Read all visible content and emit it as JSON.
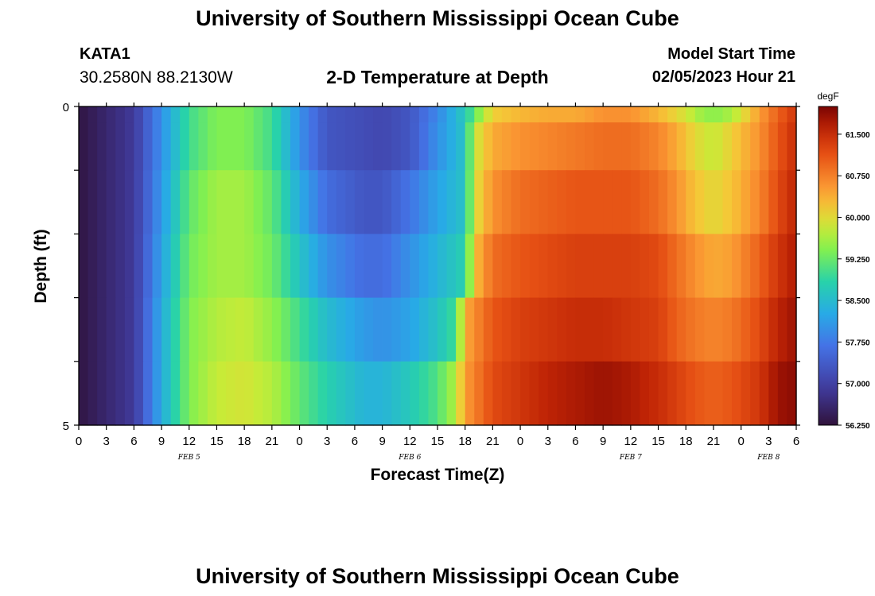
{
  "header": {
    "title": "University of Southern Mississippi Ocean Cube",
    "station_id": "KATA1",
    "coordinates": "30.2580N  88.2130W",
    "subtitle": "2-D Temperature at Depth",
    "model_start_label": "Model Start Time",
    "model_start_value": "02/05/2023 Hour 21"
  },
  "footer": {
    "title": "University of Southern Mississippi Ocean Cube"
  },
  "chart_data": {
    "type": "heatmap",
    "title": "2-D Temperature at Depth",
    "xlabel": "Forecast Time(Z)",
    "ylabel": "Depth (ft)",
    "y_tick_labels": [
      "0",
      "5"
    ],
    "ylim": [
      0,
      5
    ],
    "x_tick_labels": [
      "0",
      "3",
      "6",
      "9",
      "12",
      "15",
      "18",
      "21",
      "0",
      "3",
      "6",
      "9",
      "12",
      "15",
      "18",
      "21",
      "0",
      "3",
      "6",
      "9",
      "12",
      "15",
      "18",
      "21",
      "0",
      "3",
      "6"
    ],
    "x_tick_hours": [
      0,
      3,
      6,
      9,
      12,
      15,
      18,
      21,
      24,
      27,
      30,
      33,
      36,
      39,
      42,
      45,
      48,
      51,
      54,
      57,
      60,
      63,
      66,
      69,
      72,
      75,
      78
    ],
    "xlim_hours": [
      0,
      78
    ],
    "date_labels": [
      {
        "text": "FEB 5",
        "hour": 12
      },
      {
        "text": "FEB 6",
        "hour": 36
      },
      {
        "text": "FEB 7",
        "hour": 60
      },
      {
        "text": "FEB 8",
        "hour": 75
      }
    ],
    "colorbar": {
      "unit": "degF",
      "min": 56.25,
      "max": 62.0,
      "tick_labels": [
        "61.500",
        "60.750",
        "60.000",
        "59.250",
        "58.500",
        "57.750",
        "57.000",
        "56.250"
      ],
      "tick_values": [
        61.5,
        60.75,
        60.0,
        59.25,
        58.5,
        57.75,
        57.0,
        56.25
      ]
    },
    "depth_rows": [
      0,
      0.5,
      1.5,
      2.5,
      3.5,
      4.5
    ],
    "row_keyframes": [
      [
        [
          0,
          56.3
        ],
        [
          6,
          56.9
        ],
        [
          9,
          58.0
        ],
        [
          12,
          59.0
        ],
        [
          15,
          59.4
        ],
        [
          18,
          59.4
        ],
        [
          21,
          59.0
        ],
        [
          24,
          58.0
        ],
        [
          27,
          57.3
        ],
        [
          33,
          57.1
        ],
        [
          36,
          57.3
        ],
        [
          39,
          57.9
        ],
        [
          42,
          58.7
        ],
        [
          44,
          59.7
        ],
        [
          45,
          60.1
        ],
        [
          48,
          60.3
        ],
        [
          51,
          60.4
        ],
        [
          54,
          60.4
        ],
        [
          57,
          60.6
        ],
        [
          60,
          60.6
        ],
        [
          63,
          60.3
        ],
        [
          66,
          59.9
        ],
        [
          68,
          59.5
        ],
        [
          70,
          59.5
        ],
        [
          72,
          59.9
        ],
        [
          74,
          60.5
        ],
        [
          76,
          61.0
        ],
        [
          78,
          61.4
        ]
      ],
      [
        [
          0,
          56.3
        ],
        [
          6,
          56.9
        ],
        [
          9,
          58.0
        ],
        [
          12,
          59.0
        ],
        [
          15,
          59.4
        ],
        [
          18,
          59.4
        ],
        [
          21,
          59.0
        ],
        [
          24,
          58.0
        ],
        [
          27,
          57.3
        ],
        [
          33,
          57.1
        ],
        [
          36,
          57.3
        ],
        [
          39,
          58.0
        ],
        [
          42,
          58.6
        ],
        [
          43,
          59.8
        ],
        [
          45,
          60.4
        ],
        [
          48,
          60.6
        ],
        [
          51,
          60.7
        ],
        [
          54,
          60.8
        ],
        [
          57,
          60.9
        ],
        [
          60,
          60.9
        ],
        [
          63,
          60.7
        ],
        [
          65,
          60.4
        ],
        [
          67,
          60.0
        ],
        [
          69,
          59.8
        ],
        [
          71,
          60.1
        ],
        [
          74,
          60.6
        ],
        [
          76,
          61.1
        ],
        [
          78,
          61.5
        ]
      ],
      [
        [
          0,
          56.3
        ],
        [
          6,
          56.9
        ],
        [
          9,
          58.1
        ],
        [
          12,
          59.2
        ],
        [
          15,
          59.6
        ],
        [
          18,
          59.6
        ],
        [
          21,
          59.2
        ],
        [
          24,
          58.3
        ],
        [
          27,
          57.6
        ],
        [
          31,
          57.3
        ],
        [
          33,
          57.3
        ],
        [
          36,
          57.7
        ],
        [
          39,
          58.2
        ],
        [
          42,
          58.6
        ],
        [
          43,
          59.9
        ],
        [
          45,
          60.6
        ],
        [
          48,
          60.9
        ],
        [
          51,
          61.0
        ],
        [
          54,
          61.1
        ],
        [
          57,
          61.1
        ],
        [
          60,
          61.1
        ],
        [
          63,
          60.9
        ],
        [
          65,
          60.6
        ],
        [
          67,
          60.2
        ],
        [
          69,
          60.0
        ],
        [
          71,
          60.2
        ],
        [
          74,
          60.7
        ],
        [
          76,
          61.2
        ],
        [
          78,
          61.6
        ]
      ],
      [
        [
          0,
          56.3
        ],
        [
          6,
          56.9
        ],
        [
          9,
          58.2
        ],
        [
          12,
          59.3
        ],
        [
          15,
          59.6
        ],
        [
          18,
          59.6
        ],
        [
          21,
          59.3
        ],
        [
          24,
          58.6
        ],
        [
          27,
          58.0
        ],
        [
          31,
          57.6
        ],
        [
          33,
          57.6
        ],
        [
          36,
          58.0
        ],
        [
          39,
          58.4
        ],
        [
          42,
          58.8
        ],
        [
          43,
          60.2
        ],
        [
          45,
          60.9
        ],
        [
          48,
          61.1
        ],
        [
          51,
          61.2
        ],
        [
          54,
          61.3
        ],
        [
          57,
          61.3
        ],
        [
          60,
          61.3
        ],
        [
          63,
          61.2
        ],
        [
          65,
          60.9
        ],
        [
          67,
          60.6
        ],
        [
          69,
          60.4
        ],
        [
          71,
          60.5
        ],
        [
          74,
          61.0
        ],
        [
          76,
          61.4
        ],
        [
          78,
          61.7
        ]
      ],
      [
        [
          0,
          56.3
        ],
        [
          6,
          56.9
        ],
        [
          9,
          58.3
        ],
        [
          12,
          59.4
        ],
        [
          15,
          59.7
        ],
        [
          18,
          59.8
        ],
        [
          21,
          59.5
        ],
        [
          24,
          59.0
        ],
        [
          27,
          58.5
        ],
        [
          31,
          58.1
        ],
        [
          33,
          58.0
        ],
        [
          36,
          58.2
        ],
        [
          39,
          58.6
        ],
        [
          41,
          59.0
        ],
        [
          42,
          60.4
        ],
        [
          45,
          61.1
        ],
        [
          48,
          61.3
        ],
        [
          51,
          61.4
        ],
        [
          54,
          61.5
        ],
        [
          57,
          61.5
        ],
        [
          60,
          61.4
        ],
        [
          63,
          61.3
        ],
        [
          65,
          61.0
        ],
        [
          67,
          60.8
        ],
        [
          69,
          60.7
        ],
        [
          71,
          60.8
        ],
        [
          74,
          61.2
        ],
        [
          76,
          61.6
        ],
        [
          78,
          61.8
        ]
      ],
      [
        [
          0,
          56.3
        ],
        [
          6,
          56.9
        ],
        [
          9,
          58.3
        ],
        [
          12,
          59.4
        ],
        [
          15,
          59.8
        ],
        [
          18,
          59.9
        ],
        [
          21,
          59.7
        ],
        [
          24,
          59.2
        ],
        [
          27,
          58.8
        ],
        [
          31,
          58.4
        ],
        [
          33,
          58.4
        ],
        [
          36,
          58.7
        ],
        [
          39,
          59.1
        ],
        [
          41,
          59.7
        ],
        [
          42,
          60.5
        ],
        [
          45,
          61.2
        ],
        [
          48,
          61.4
        ],
        [
          51,
          61.6
        ],
        [
          54,
          61.7
        ],
        [
          57,
          61.8
        ],
        [
          60,
          61.7
        ],
        [
          63,
          61.5
        ],
        [
          65,
          61.3
        ],
        [
          67,
          61.1
        ],
        [
          69,
          61.0
        ],
        [
          71,
          61.1
        ],
        [
          74,
          61.4
        ],
        [
          76,
          61.8
        ],
        [
          78,
          61.9
        ]
      ]
    ]
  }
}
